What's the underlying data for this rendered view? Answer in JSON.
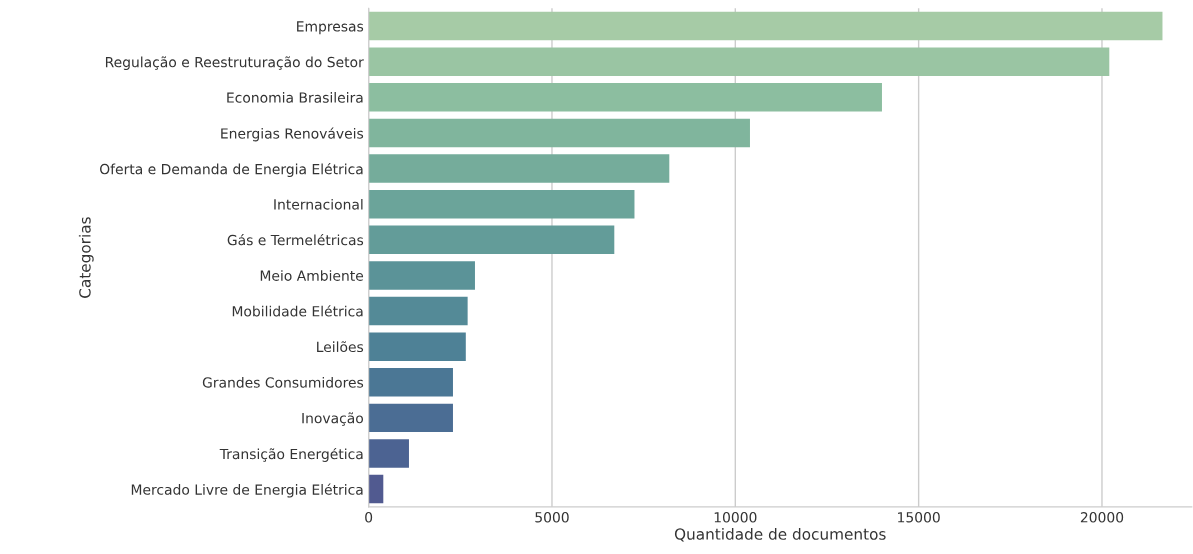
{
  "chart_data": {
    "type": "bar",
    "orientation": "horizontal",
    "xlabel": "Quantidade de documentos",
    "ylabel": "Categorias",
    "categories": [
      "Empresas",
      "Regulação e Reestruturação do Setor",
      "Economia Brasileira",
      "Energias Renováveis",
      "Oferta e Demanda de Energia Elétrica",
      "Internacional",
      "Gás e Termelétricas",
      "Meio Ambiente",
      "Mobilidade Elétrica",
      "Leilões",
      "Grandes Consumidores",
      "Inovação",
      "Transição Energética",
      "Mercado Livre de Energia Elétrica"
    ],
    "values": [
      21650,
      20200,
      14000,
      10400,
      8200,
      7250,
      6700,
      2900,
      2700,
      2650,
      2300,
      2300,
      1100,
      400
    ],
    "colors": [
      "#a6cba6",
      "#9ac5a3",
      "#8cbea0",
      "#80b59d",
      "#75ac9b",
      "#6ba49a",
      "#639c99",
      "#5b9398",
      "#548a97",
      "#4e8196",
      "#4b7795",
      "#4b6d94",
      "#4c6392",
      "#515a90"
    ],
    "xlim": [
      0,
      22450
    ],
    "xticks": [
      0,
      5000,
      10000,
      15000,
      20000
    ],
    "grid": "x"
  }
}
